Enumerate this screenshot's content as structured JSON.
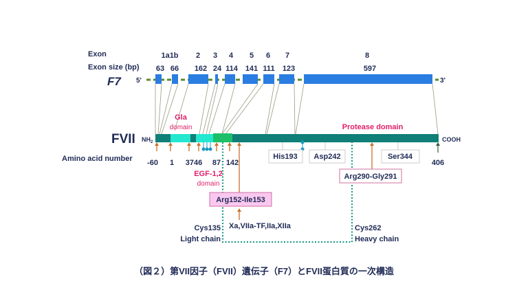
{
  "labels": {
    "exon": "Exon",
    "exon_size": "Exon size (bp)",
    "gene": "F7",
    "five": "5'",
    "three": "3'",
    "protein": "FVII",
    "nh2": "NH",
    "nh2_sub": "2",
    "cooh": "COOH",
    "amino": "Amino acid number"
  },
  "exons": [
    {
      "name": "1a1b",
      "size": "63"
    },
    {
      "name": "",
      "size": "66"
    },
    {
      "name": "2",
      "size": "162"
    },
    {
      "name": "3",
      "size": "24"
    },
    {
      "name": "4",
      "size": "114"
    },
    {
      "name": "5",
      "size": "141"
    },
    {
      "name": "6",
      "size": "111"
    },
    {
      "name": "7",
      "size": "123"
    },
    {
      "name": "8",
      "size": "597"
    }
  ],
  "amino_numbers": [
    "-60",
    "1",
    "3746",
    "87",
    "142",
    "406"
  ],
  "domains": {
    "gla1": "Gla",
    "gla2": "domain",
    "egf1": "EGF-1,2",
    "egf2": "domain",
    "protease": "Protease domain"
  },
  "residues": {
    "his": "His193",
    "asp": "Asp242",
    "ser": "Ser344"
  },
  "cleavage": {
    "light": "Arg152-Ile153",
    "heavy": "Arg290-Gly291",
    "activators": "Xa,VIIa-TF,IIa,XIIa"
  },
  "chains": {
    "cys135": "Cys135",
    "light": "Light chain",
    "cys262": "Cys262",
    "heavy": "Heavy chain"
  },
  "caption": "（図２）第VII因子（FVII）遺伝子（F7）とFVII蛋白質の一次構造",
  "colors": {
    "exon": "#2a7de1",
    "protein": "#0f7f78",
    "gla": "#22e8d0",
    "egf2": "#1dbf6a",
    "arrow": "#c8702a",
    "dotted": "#1a9a8a",
    "pink": "#e0206a"
  }
}
